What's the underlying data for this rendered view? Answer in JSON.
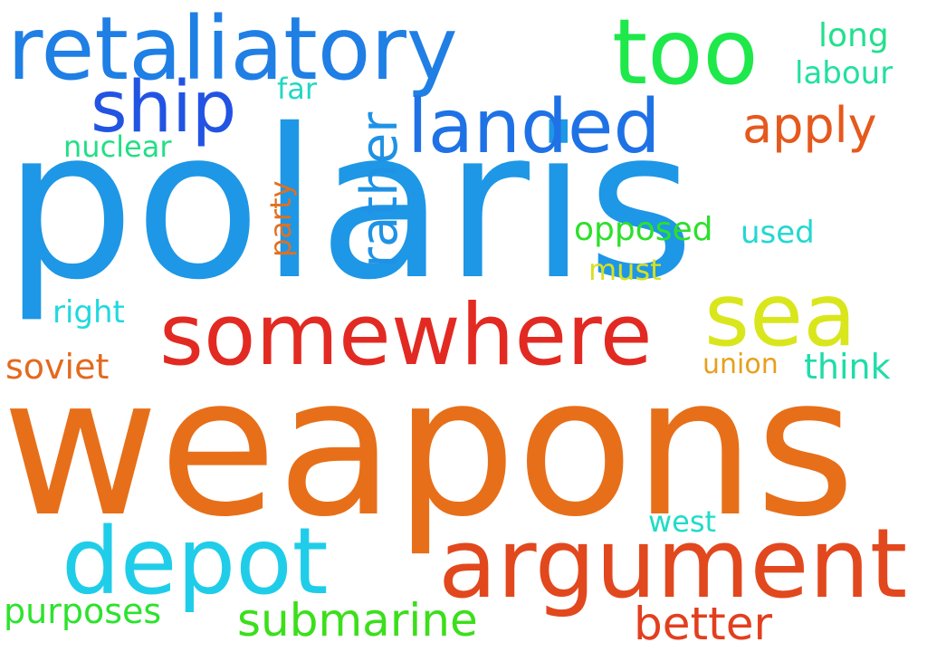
{
  "words": [
    {
      "text": "polaris",
      "color": "#1e97e6"
    },
    {
      "text": "weapons",
      "color": "#e76f1a"
    },
    {
      "text": "retaliatory",
      "color": "#1f7fe5"
    },
    {
      "text": "somewhere",
      "color": "#e22a22"
    },
    {
      "text": "argument",
      "color": "#e2481e"
    },
    {
      "text": "depot",
      "color": "#1fcde9"
    },
    {
      "text": "too",
      "color": "#1ee84a"
    },
    {
      "text": "ship",
      "color": "#2254e3"
    },
    {
      "text": "landed",
      "color": "#1f72e5"
    },
    {
      "text": "sea",
      "color": "#d9e61c"
    },
    {
      "text": "submarine",
      "color": "#3bdf1a"
    },
    {
      "text": "better",
      "color": "#e23f1f"
    },
    {
      "text": "apply",
      "color": "#e5591d"
    },
    {
      "text": "rather",
      "color": "#1f92e5"
    },
    {
      "text": "soviet",
      "color": "#e36a1e"
    },
    {
      "text": "purposes",
      "color": "#2ee22e"
    },
    {
      "text": "opposed",
      "color": "#2ce02a"
    },
    {
      "text": "think",
      "color": "#1fdca8"
    },
    {
      "text": "union",
      "color": "#e6a01c"
    },
    {
      "text": "long",
      "color": "#22e08c"
    },
    {
      "text": "labour",
      "color": "#22e0a0"
    },
    {
      "text": "nuclear",
      "color": "#22df86"
    },
    {
      "text": "far",
      "color": "#22d8c2"
    },
    {
      "text": "party",
      "color": "#e2701f"
    },
    {
      "text": "used",
      "color": "#22d8d0"
    },
    {
      "text": "must",
      "color": "#d8e022"
    },
    {
      "text": "right",
      "color": "#22d8e0"
    },
    {
      "text": "west",
      "color": "#1fdcc8"
    }
  ]
}
